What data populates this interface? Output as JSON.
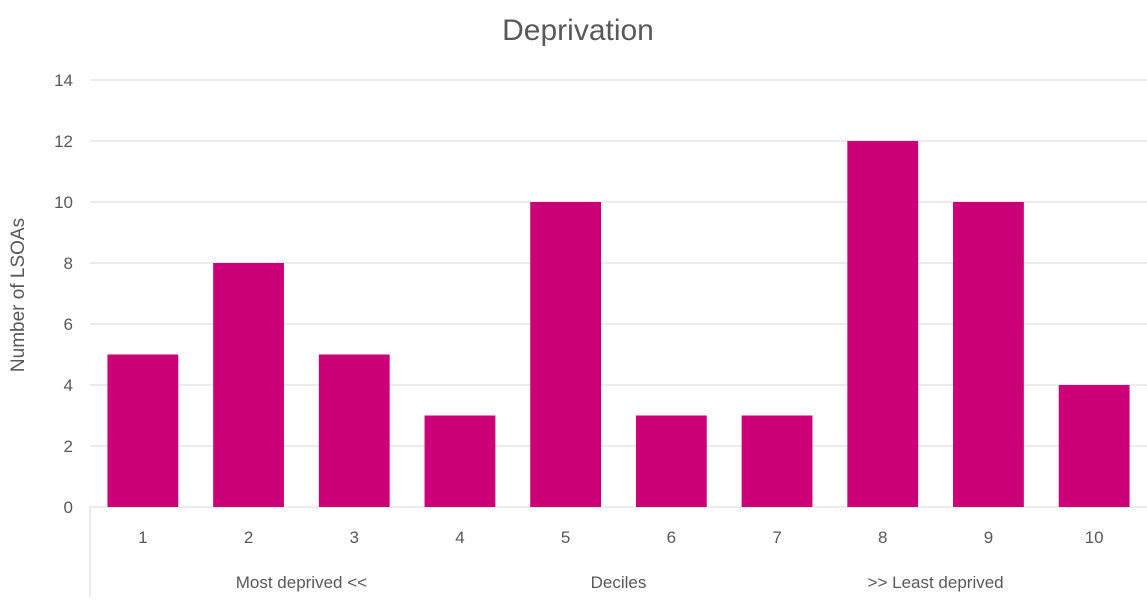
{
  "chart_data": {
    "type": "bar",
    "title": "Deprivation",
    "ylabel": "Number of LSOAs",
    "categories": [
      "1",
      "2",
      "3",
      "4",
      "5",
      "6",
      "7",
      "8",
      "9",
      "10"
    ],
    "values": [
      5,
      8,
      5,
      3,
      10,
      3,
      3,
      12,
      10,
      4
    ],
    "ylim": [
      0,
      14
    ],
    "yticks": [
      0,
      2,
      4,
      6,
      8,
      10,
      12,
      14
    ],
    "group_labels": [
      "Most deprived <<",
      "Deciles",
      ">> Least deprived"
    ],
    "grid": true,
    "legend": "none",
    "bar_color": "#CC0077"
  }
}
